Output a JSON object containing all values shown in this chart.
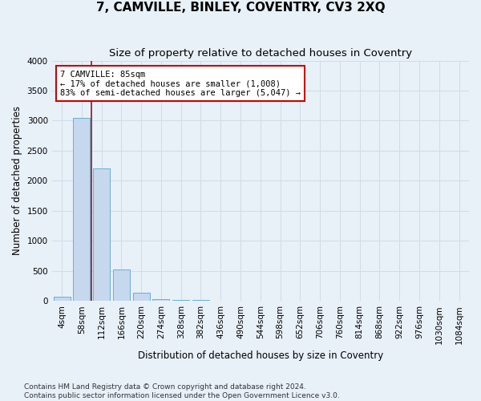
{
  "title": "7, CAMVILLE, BINLEY, COVENTRY, CV3 2XQ",
  "subtitle": "Size of property relative to detached houses in Coventry",
  "xlabel": "Distribution of detached houses by size in Coventry",
  "ylabel": "Number of detached properties",
  "footer_line1": "Contains HM Land Registry data © Crown copyright and database right 2024.",
  "footer_line2": "Contains public sector information licensed under the Open Government Licence v3.0.",
  "bin_labels": [
    "4sqm",
    "58sqm",
    "112sqm",
    "166sqm",
    "220sqm",
    "274sqm",
    "328sqm",
    "382sqm",
    "436sqm",
    "490sqm",
    "544sqm",
    "598sqm",
    "652sqm",
    "706sqm",
    "760sqm",
    "814sqm",
    "868sqm",
    "922sqm",
    "976sqm",
    "1030sqm",
    "1084sqm"
  ],
  "bar_heights": [
    70,
    3050,
    2200,
    520,
    130,
    30,
    20,
    10,
    0,
    0,
    0,
    0,
    0,
    0,
    0,
    0,
    0,
    0,
    0,
    0,
    0
  ],
  "bar_color": "#c5d8ee",
  "bar_edge_color": "#6baed6",
  "grid_color": "#d0dce8",
  "background_color": "#e8f0f8",
  "ylim": [
    0,
    4000
  ],
  "yticks": [
    0,
    500,
    1000,
    1500,
    2000,
    2500,
    3000,
    3500,
    4000
  ],
  "vline_x": 1.5,
  "vline_color": "#8b1a1a",
  "annotation_text": "7 CAMVILLE: 85sqm\n← 17% of detached houses are smaller (1,008)\n83% of semi-detached houses are larger (5,047) →",
  "annotation_box_facecolor": "#ffffff",
  "annotation_box_edgecolor": "#cc0000",
  "title_fontsize": 11,
  "subtitle_fontsize": 9.5,
  "axis_label_fontsize": 8.5,
  "tick_fontsize": 7.5,
  "annotation_fontsize": 7.5,
  "footer_fontsize": 6.5
}
